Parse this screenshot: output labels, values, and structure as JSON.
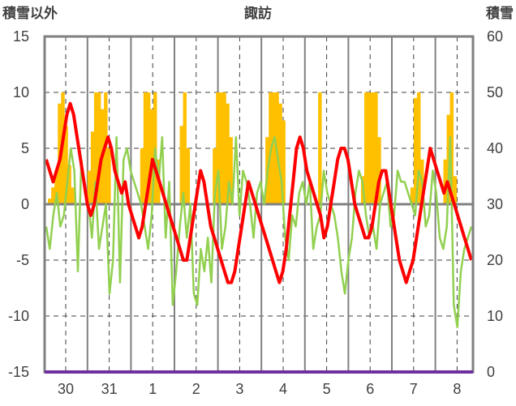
{
  "chart_data": {
    "type": "line",
    "title": "諏訪",
    "left_axis_label": "積雪以外",
    "right_axis_label": "積雪",
    "ylim_left": [
      -15,
      15
    ],
    "ylim_right": [
      0,
      60
    ],
    "left_ticks": [
      "15",
      "10",
      "5",
      "0",
      "-5",
      "-10",
      "-15"
    ],
    "right_ticks": [
      "60",
      "50",
      "40",
      "30",
      "20",
      "10",
      "0"
    ],
    "x_labels": [
      "30",
      "31",
      "1",
      "2",
      "3",
      "4",
      "5",
      "6",
      "7",
      "8"
    ],
    "grid": true,
    "colors": {
      "temperature": "#ff0000",
      "humidity_like": "#92d050",
      "snow": "#ffc000",
      "baseline": "#7030a0",
      "frame": "#808080"
    },
    "series": [
      {
        "key": "red",
        "values": [
          4,
          3,
          2,
          3,
          4,
          6,
          8,
          9,
          8,
          6,
          4,
          2,
          0,
          -1,
          0,
          2,
          4,
          5,
          6,
          5,
          3,
          2,
          1,
          2,
          0,
          -1,
          -2,
          -3,
          -2,
          0,
          2,
          4,
          3,
          2,
          1,
          0,
          -1,
          -2,
          -3,
          -4,
          -5,
          -5,
          -3,
          -1,
          1,
          3,
          2,
          0,
          -2,
          -3,
          -4,
          -5,
          -6,
          -7,
          -7,
          -6,
          -4,
          -2,
          0,
          2,
          1,
          0,
          -1,
          -2,
          -3,
          -4,
          -5,
          -6,
          -7,
          -6,
          -4,
          -1,
          2,
          5,
          6,
          5,
          3,
          2,
          1,
          0,
          -1,
          -3,
          -2,
          0,
          2,
          4,
          5,
          5,
          4,
          2,
          0,
          -1,
          -2,
          -3,
          -3,
          -2,
          0,
          2,
          3,
          3,
          1,
          -1,
          -3,
          -5,
          -6,
          -7,
          -6,
          -5,
          -3,
          -1,
          1,
          3,
          5,
          4,
          3,
          2,
          1,
          2,
          1,
          0,
          -1,
          -2,
          -3,
          -4,
          -5
        ]
      },
      {
        "key": "green",
        "values": [
          -2,
          -4,
          -1,
          1,
          -2,
          -1,
          2,
          5,
          3,
          -6,
          4,
          1,
          0,
          -3,
          2,
          -4,
          -2,
          0,
          -8,
          -5,
          6,
          -7,
          4,
          5,
          3,
          2,
          1,
          0,
          -2,
          -4,
          -1,
          5,
          2,
          6,
          -3,
          2,
          -9,
          -6,
          -2,
          1,
          -3,
          0,
          -8,
          -9,
          -4,
          -6,
          -3,
          -7,
          1,
          3,
          -4,
          -2,
          2,
          0,
          6,
          -1,
          3,
          2,
          0,
          -3,
          1,
          2,
          0,
          3,
          5,
          6,
          4,
          2,
          -3,
          -5,
          -1,
          -2,
          1,
          2,
          0,
          2,
          -4,
          -2,
          -1,
          3,
          1,
          0,
          -1,
          -3,
          -6,
          -8,
          -5,
          -3,
          1,
          3,
          2,
          -1,
          -3,
          -2,
          -4,
          0,
          1,
          2,
          -2,
          -1,
          3,
          2,
          2,
          1,
          0,
          -1,
          3,
          2,
          -2,
          -1,
          3,
          1,
          -3,
          -4,
          -2,
          6,
          -9,
          -11,
          -6,
          -4,
          -3,
          -2
        ]
      },
      {
        "key": "snow",
        "axis": "right",
        "values": [
          30,
          31,
          33,
          36,
          48,
          50,
          44,
          37,
          33,
          30,
          30,
          30,
          30,
          36,
          43,
          50,
          50,
          47,
          50,
          40,
          30,
          30,
          30,
          30,
          30,
          30,
          30,
          30,
          30,
          40,
          50,
          50,
          47,
          50,
          38,
          30,
          30,
          30,
          30,
          30,
          30,
          44,
          50,
          40,
          30,
          30,
          30,
          30,
          30,
          30,
          30,
          40,
          50,
          50,
          50,
          48,
          42,
          30,
          30,
          30,
          30,
          30,
          30,
          30,
          30,
          30,
          30,
          42,
          50,
          50,
          50,
          48,
          45,
          30,
          30,
          30,
          30,
          30,
          30,
          30,
          30,
          30,
          30,
          50,
          30,
          30,
          30,
          30,
          30,
          30,
          30,
          30,
          30,
          30,
          30,
          30,
          35,
          50,
          50,
          50,
          50,
          42,
          30,
          30,
          30,
          30,
          30,
          30,
          30,
          30,
          30,
          33,
          49,
          50,
          38,
          30,
          30,
          30,
          30,
          30,
          30,
          38,
          46,
          50,
          35,
          30,
          30,
          30,
          30,
          30
        ]
      }
    ]
  }
}
